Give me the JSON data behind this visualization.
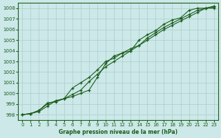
{
  "title": "Graphe pression niveau de la mer (hPa)",
  "bg_color": "#cce8e8",
  "grid_color": "#aacccc",
  "line_color": "#1a5c1a",
  "xlim": [
    -0.5,
    23.5
  ],
  "ylim": [
    997.5,
    1008.5
  ],
  "yticks": [
    998,
    999,
    1000,
    1001,
    1002,
    1003,
    1004,
    1005,
    1006,
    1007,
    1008
  ],
  "xticks": [
    0,
    1,
    2,
    3,
    4,
    5,
    6,
    7,
    8,
    9,
    10,
    11,
    12,
    13,
    14,
    15,
    16,
    17,
    18,
    19,
    20,
    21,
    22,
    23
  ],
  "series1_x": [
    0,
    1,
    2,
    3,
    4,
    5,
    6,
    7,
    8,
    9,
    10,
    11,
    12,
    13,
    14,
    15,
    16,
    17,
    18,
    19,
    20,
    21,
    22,
    23
  ],
  "series1_y": [
    998.0,
    998.1,
    998.4,
    999.0,
    999.3,
    999.5,
    999.9,
    1000.3,
    1001.1,
    1001.8,
    1002.5,
    1003.0,
    1003.5,
    1004.0,
    1004.5,
    1005.0,
    1005.5,
    1006.0,
    1006.4,
    1006.8,
    1007.2,
    1007.6,
    1008.0,
    1008.2
  ],
  "series2_x": [
    0,
    1,
    2,
    3,
    4,
    5,
    6,
    7,
    8,
    9,
    10,
    11,
    12,
    13,
    14,
    15,
    16,
    17,
    18,
    19,
    20,
    21,
    22,
    23
  ],
  "series2_y": [
    998.0,
    998.1,
    998.4,
    999.1,
    999.2,
    999.5,
    1000.5,
    1001.0,
    1001.5,
    1002.2,
    1003.0,
    1003.3,
    1003.8,
    1004.0,
    1005.0,
    1005.5,
    1005.9,
    1006.5,
    1006.9,
    1007.1,
    1007.8,
    1008.0,
    1008.0,
    1008.1
  ],
  "series3_x": [
    0,
    1,
    2,
    3,
    4,
    5,
    6,
    7,
    8,
    9,
    10,
    11,
    12,
    13,
    14,
    15,
    16,
    17,
    18,
    19,
    20,
    21,
    22,
    23
  ],
  "series3_y": [
    998.0,
    998.1,
    998.3,
    998.8,
    999.3,
    999.5,
    999.7,
    1000.0,
    1000.3,
    1001.5,
    1002.8,
    1003.5,
    1003.8,
    1004.2,
    1004.5,
    1005.2,
    1005.7,
    1006.2,
    1006.6,
    1007.0,
    1007.4,
    1007.8,
    1008.0,
    1008.0
  ]
}
